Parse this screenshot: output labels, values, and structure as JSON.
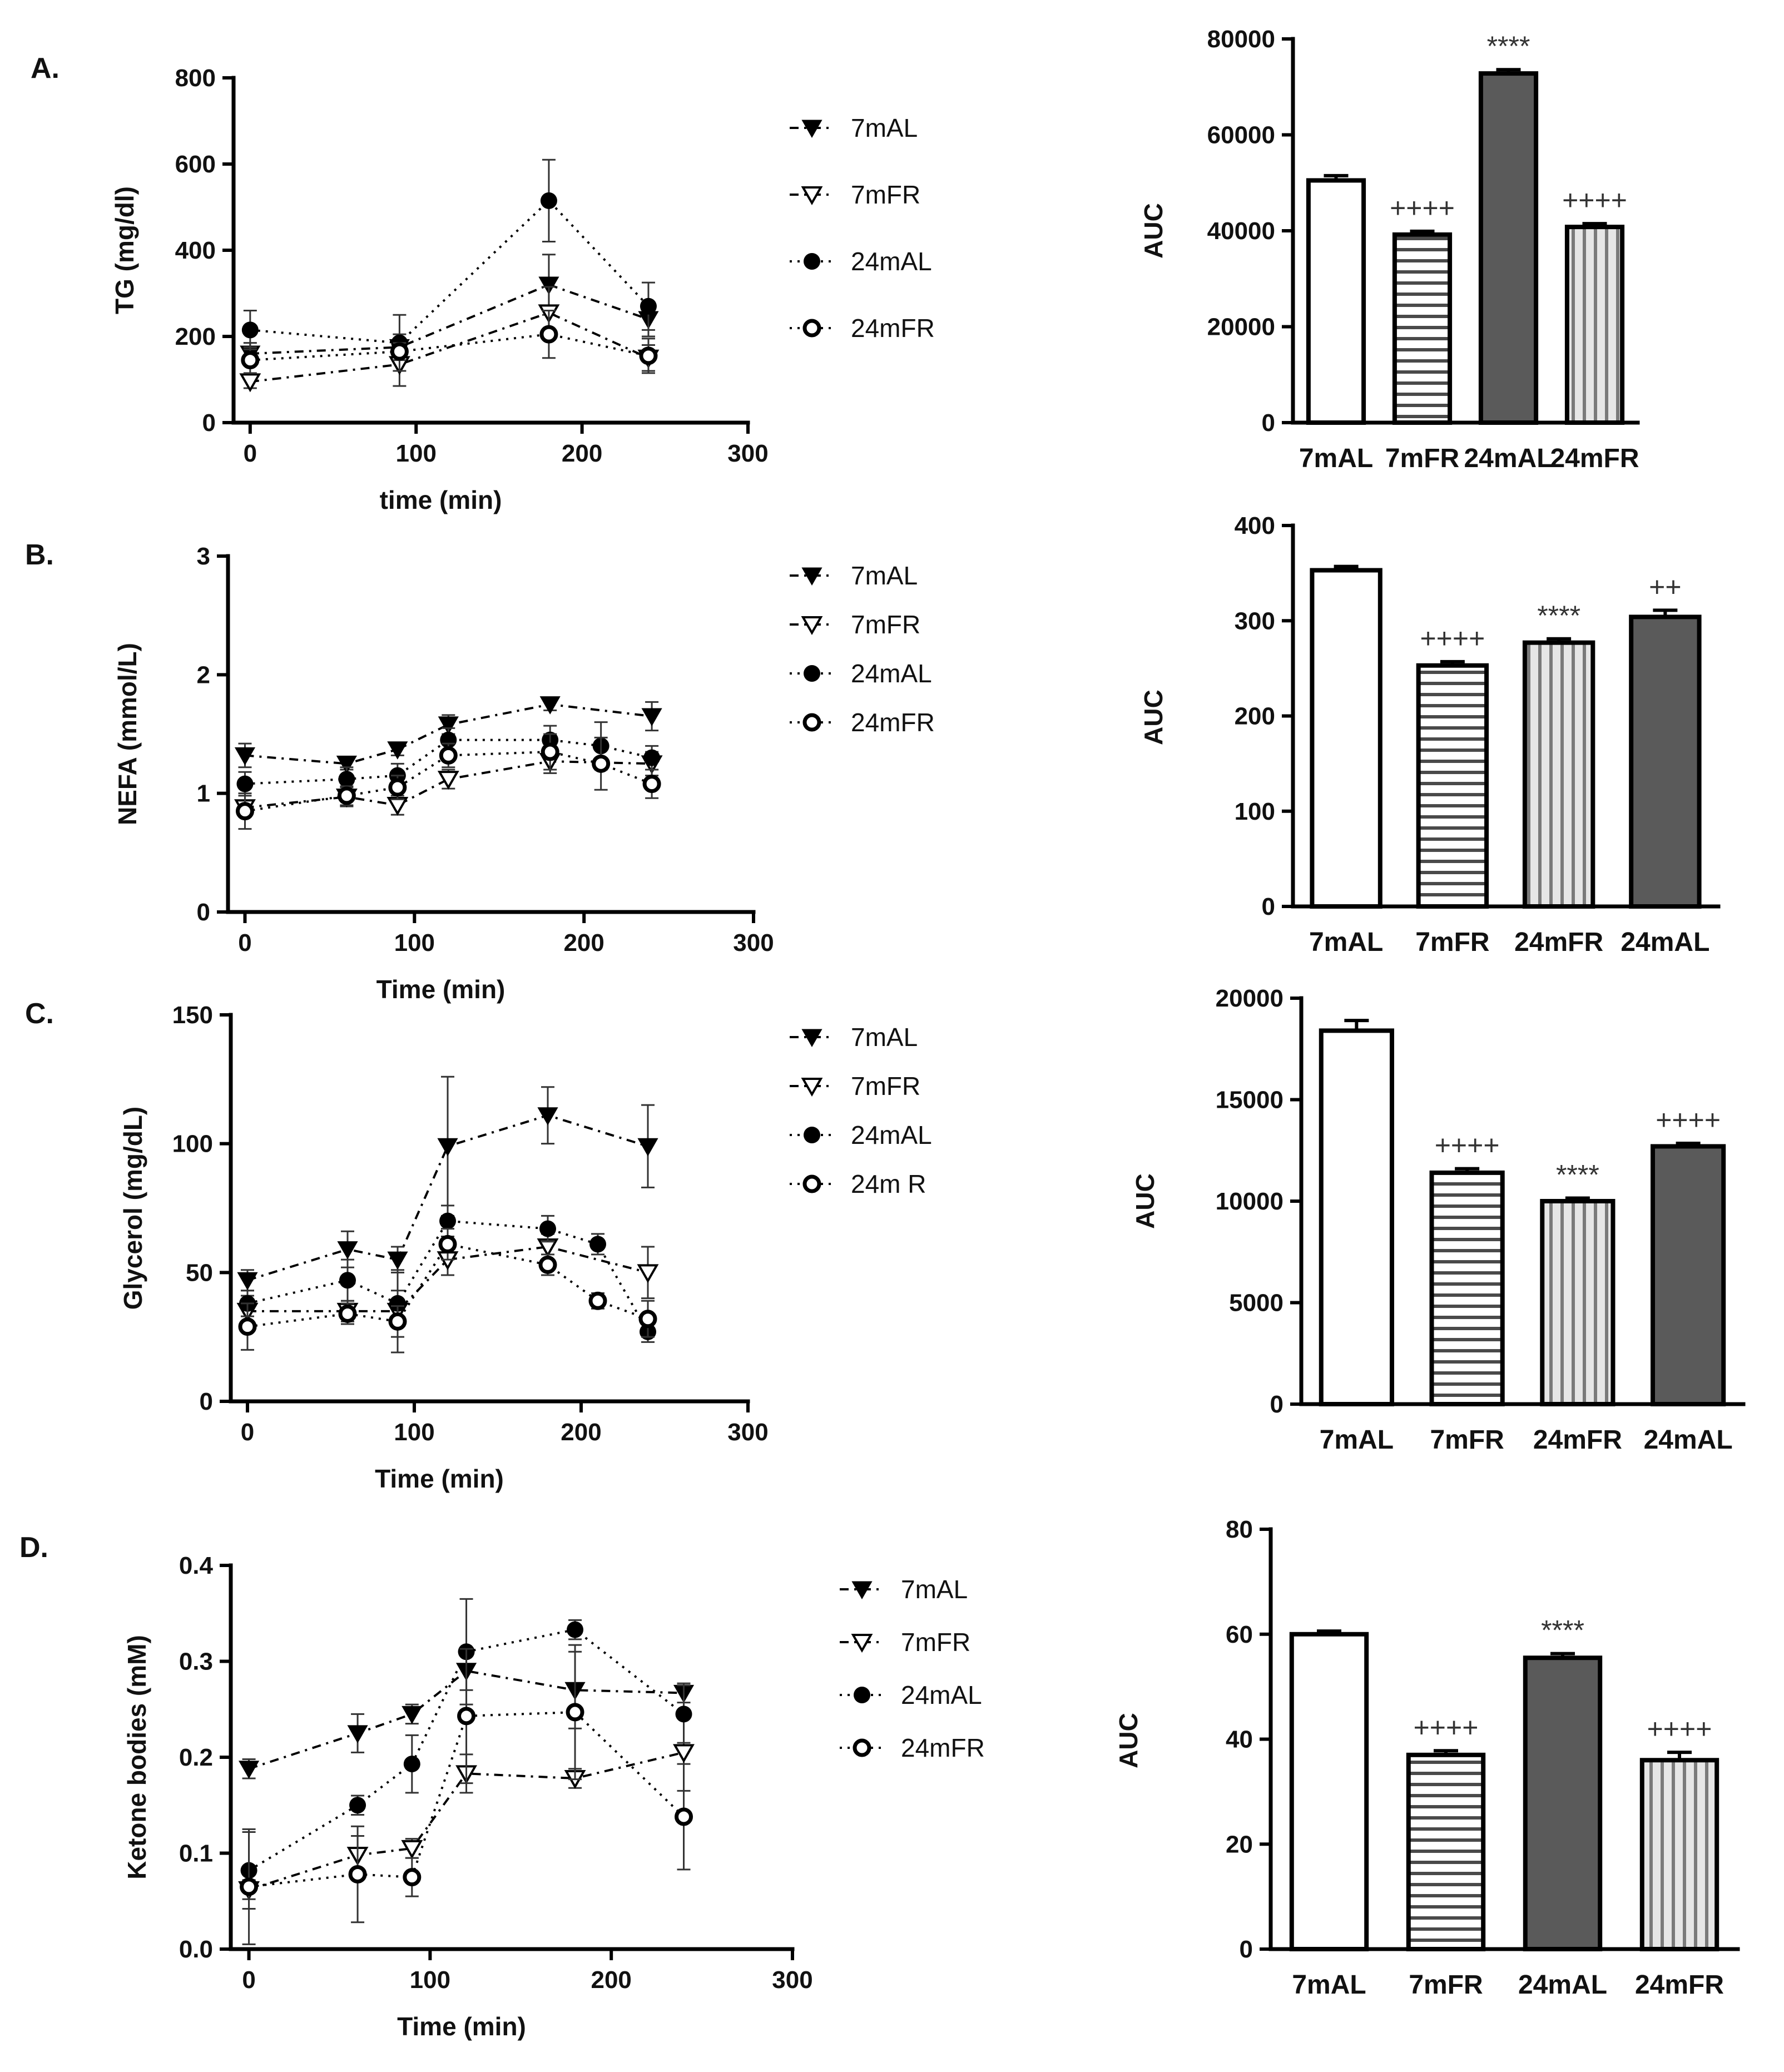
{
  "chart_data": [
    {
      "panel": "A.",
      "type": "line",
      "ylabel": "TG (mg/dl)",
      "xlabel": "time (min)",
      "xlim": [
        -10,
        300
      ],
      "ylim": [
        0,
        800
      ],
      "xticks": [
        0,
        100,
        200,
        300
      ],
      "yticks": [
        0,
        200,
        400,
        600,
        800
      ],
      "legend_position": "right",
      "series": [
        {
          "name": "7mAL",
          "marker": "tri-down-filled",
          "dash": "dashdot",
          "x": [
            0,
            90,
            180,
            240
          ],
          "y": [
            160,
            175,
            320,
            240
          ],
          "err": [
            25,
            30,
            70,
            40
          ]
        },
        {
          "name": "7mFR",
          "marker": "tri-down-open",
          "dash": "dashdot",
          "x": [
            0,
            90,
            180,
            240
          ],
          "y": [
            95,
            135,
            255,
            150
          ],
          "err": [
            15,
            50,
            60,
            30
          ]
        },
        {
          "name": "24mAL",
          "marker": "circle-filled",
          "dash": "dotted",
          "x": [
            0,
            90,
            180,
            240
          ],
          "y": [
            215,
            185,
            515,
            270
          ],
          "err": [
            45,
            65,
            95,
            55
          ]
        },
        {
          "name": "24mFR",
          "marker": "circle-open",
          "dash": "dotted",
          "x": [
            0,
            90,
            180,
            240
          ],
          "y": [
            145,
            165,
            205,
            155
          ],
          "err": [
            30,
            20,
            55,
            40
          ]
        }
      ]
    },
    {
      "panel": "",
      "type": "bar",
      "ylabel": "AUC",
      "ylim": [
        0,
        80000
      ],
      "yticks": [
        0,
        20000,
        40000,
        60000,
        80000
      ],
      "categories": [
        "7mAL",
        "7mFR",
        "24mAL",
        "24mFR"
      ],
      "values": [
        50500,
        39200,
        72800,
        40800
      ],
      "errors": [
        1000,
        700,
        800,
        700
      ],
      "fills": [
        "white",
        "hstripes",
        "dark",
        "vstripes"
      ],
      "annotations": [
        "",
        "++++",
        "****",
        "++++"
      ]
    },
    {
      "panel": "B.",
      "type": "line",
      "ylabel": "NEFA (mmol/L)",
      "xlabel": "Time (min)",
      "xlim": [
        -10,
        300
      ],
      "ylim": [
        0,
        3
      ],
      "xticks": [
        0,
        100,
        200,
        300
      ],
      "yticks": [
        0,
        1,
        2,
        3
      ],
      "legend_position": "right",
      "series": [
        {
          "name": "7mAL",
          "marker": "tri-down-filled",
          "dash": "dashdot",
          "x": [
            0,
            60,
            90,
            120,
            180,
            240
          ],
          "y": [
            1.32,
            1.25,
            1.37,
            1.58,
            1.75,
            1.65
          ],
          "err": [
            0.1,
            0.05,
            0.05,
            0.08,
            0.05,
            0.12
          ]
        },
        {
          "name": "7mFR",
          "marker": "tri-down-open",
          "dash": "dashdot",
          "x": [
            0,
            60,
            90,
            120,
            180,
            240
          ],
          "y": [
            0.88,
            0.97,
            0.9,
            1.12,
            1.27,
            1.25
          ],
          "err": [
            0.05,
            0.08,
            0.08,
            0.08,
            0.1,
            0.1
          ]
        },
        {
          "name": "24mAL",
          "marker": "circle-filled",
          "dash": "dotted",
          "x": [
            0,
            60,
            90,
            120,
            180,
            210,
            240
          ],
          "y": [
            1.08,
            1.12,
            1.15,
            1.45,
            1.45,
            1.4,
            1.3
          ],
          "err": [
            0.1,
            0.1,
            0.1,
            0.1,
            0.12,
            0.2,
            0.1
          ]
        },
        {
          "name": "24mFR",
          "marker": "circle-open",
          "dash": "dotted",
          "x": [
            0,
            60,
            90,
            120,
            180,
            210,
            240
          ],
          "y": [
            0.85,
            0.98,
            1.05,
            1.32,
            1.35,
            1.25,
            1.08
          ],
          "err": [
            0.15,
            0.08,
            0.1,
            0.1,
            0.15,
            0.22,
            0.12
          ]
        }
      ]
    },
    {
      "panel": "",
      "type": "bar",
      "ylabel": "AUC",
      "ylim": [
        0,
        400
      ],
      "yticks": [
        0,
        100,
        200,
        300,
        400
      ],
      "categories": [
        "7mAL",
        "7mFR",
        "24mFR",
        "24mAL"
      ],
      "values": [
        353,
        253,
        277,
        304
      ],
      "errors": [
        4,
        4,
        4,
        7
      ],
      "fills": [
        "white",
        "hstripes",
        "vstripes",
        "dark"
      ],
      "annotations": [
        "",
        "++++",
        "****",
        "++"
      ]
    },
    {
      "panel": "C.",
      "type": "line",
      "ylabel": "Glycerol (mg/dL)",
      "xlabel": "Time (min)",
      "xlim": [
        -10,
        300
      ],
      "ylim": [
        0,
        150
      ],
      "xticks": [
        0,
        100,
        200,
        300
      ],
      "yticks": [
        0,
        50,
        100,
        150
      ],
      "legend_position": "right",
      "series": [
        {
          "name": "7mAL",
          "marker": "tri-down-filled",
          "dash": "dashdot",
          "x": [
            0,
            60,
            90,
            120,
            180,
            240
          ],
          "y": [
            47,
            59,
            55,
            99,
            111,
            99
          ],
          "err": [
            4,
            7,
            5,
            27,
            11,
            16
          ]
        },
        {
          "name": "7mFR",
          "marker": "tri-down-open",
          "dash": "dashdot",
          "x": [
            0,
            60,
            90,
            120,
            180,
            240
          ],
          "y": [
            35,
            35,
            35,
            55,
            60,
            50
          ],
          "err": [
            6,
            4,
            16,
            6,
            5,
            10
          ]
        },
        {
          "name": "24mAL",
          "marker": "circle-filled",
          "dash": "dotted",
          "x": [
            0,
            60,
            90,
            120,
            180,
            210,
            240
          ],
          "y": [
            38,
            47,
            38,
            70,
            67,
            61,
            27
          ],
          "err": [
            5,
            8,
            5,
            6,
            5,
            4,
            4
          ]
        },
        {
          "name": "24m R",
          "marker": "circle-open",
          "dash": "dotted",
          "x": [
            0,
            60,
            90,
            120,
            180,
            210,
            240
          ],
          "y": [
            29,
            34,
            31,
            61,
            53,
            39,
            32
          ],
          "err": [
            9,
            4,
            6,
            6,
            4,
            3,
            7
          ]
        }
      ]
    },
    {
      "panel": "",
      "type": "bar",
      "ylabel": "AUC",
      "ylim": [
        0,
        20000
      ],
      "yticks": [
        0,
        5000,
        10000,
        15000,
        20000
      ],
      "categories": [
        "7mAL",
        "7mFR",
        "24mFR",
        "24mAL"
      ],
      "values": [
        18400,
        11400,
        10000,
        12700
      ],
      "errors": [
        500,
        200,
        150,
        150
      ],
      "fills": [
        "white",
        "hstripes",
        "vstripes",
        "dark"
      ],
      "annotations": [
        "",
        "++++",
        "****",
        "++++"
      ]
    },
    {
      "panel": "D.",
      "type": "line",
      "ylabel": "Ketone bodies (mM)",
      "xlabel": "Time (min)",
      "xlim": [
        -10,
        300
      ],
      "ylim": [
        0,
        0.4
      ],
      "xticks": [
        0,
        100,
        200,
        300
      ],
      "yticks": [
        0.0,
        0.1,
        0.2,
        0.3,
        0.4
      ],
      "ytick_labels": [
        "0.0",
        "0.1",
        "0.2",
        "0.3",
        "0.4"
      ],
      "legend_position": "right",
      "series": [
        {
          "name": "7mAL",
          "marker": "tri-down-filled",
          "dash": "dashdot",
          "x": [
            0,
            60,
            90,
            120,
            180,
            240
          ],
          "y": [
            0.188,
            0.225,
            0.245,
            0.29,
            0.27,
            0.267
          ],
          "err": [
            0.01,
            0.02,
            0.01,
            0.02,
            0.04,
            0.01
          ]
        },
        {
          "name": "7mFR",
          "marker": "tri-down-open",
          "dash": "dashdot",
          "x": [
            0,
            60,
            90,
            120,
            180,
            240
          ],
          "y": [
            0.062,
            0.098,
            0.105,
            0.183,
            0.178,
            0.205
          ],
          "err": [
            0.01,
            0.02,
            0.01,
            0.02,
            0.01,
            0.04
          ]
        },
        {
          "name": "24mAL",
          "marker": "circle-filled",
          "dash": "dotted",
          "x": [
            0,
            60,
            90,
            120,
            180,
            240
          ],
          "y": [
            0.082,
            0.15,
            0.193,
            0.31,
            0.333,
            0.245
          ],
          "err": [
            0.04,
            0.01,
            0.03,
            0.055,
            0.01,
            0.03
          ]
        },
        {
          "name": "24mFR",
          "marker": "circle-open",
          "dash": "dotted",
          "x": [
            0,
            60,
            90,
            120,
            180,
            240
          ],
          "y": [
            0.065,
            0.078,
            0.075,
            0.243,
            0.247,
            0.138
          ],
          "err": [
            0.06,
            0.05,
            0.02,
            0.07,
            0.07,
            0.055
          ]
        }
      ]
    },
    {
      "panel": "",
      "type": "bar",
      "ylabel": "AUC",
      "ylim": [
        0,
        80
      ],
      "yticks": [
        0,
        20,
        40,
        60,
        80
      ],
      "categories": [
        "7mAL",
        "7mFR",
        "24mAL",
        "24mFR"
      ],
      "values": [
        60,
        37,
        55.5,
        36
      ],
      "errors": [
        0.6,
        0.8,
        0.8,
        1.5
      ],
      "fills": [
        "white",
        "hstripes",
        "dark",
        "vstripes"
      ],
      "annotations": [
        "",
        "++++",
        "****",
        "++++"
      ]
    }
  ]
}
